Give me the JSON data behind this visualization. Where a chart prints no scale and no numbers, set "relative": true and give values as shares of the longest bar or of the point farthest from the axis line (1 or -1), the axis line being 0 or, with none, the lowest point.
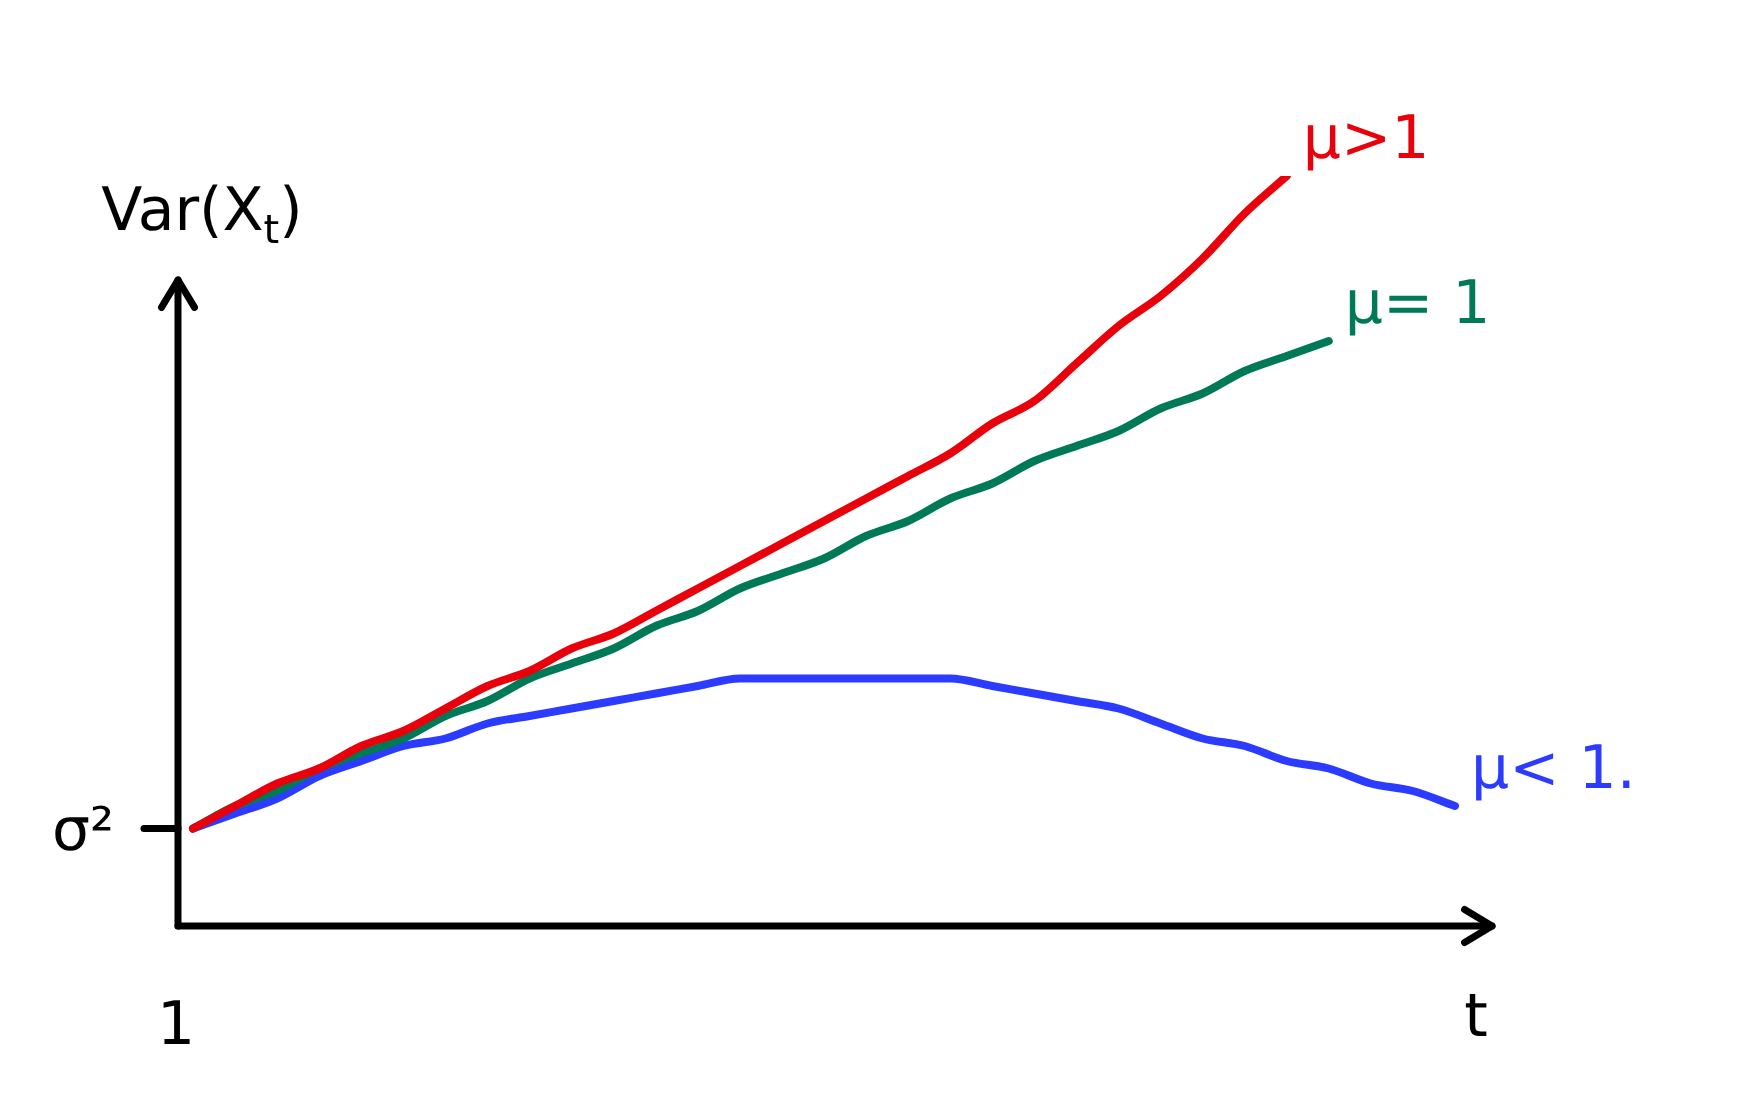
{
  "chart_data": {
    "type": "line",
    "relative": true,
    "xlabel": "t",
    "ylabel": "Var(X$_{t}$)",
    "categories": [
      null,
      null,
      null,
      null,
      null,
      null,
      null,
      null,
      null,
      null,
      null,
      null,
      null,
      null,
      null,
      null,
      null,
      null,
      null,
      null,
      null,
      null,
      null,
      null,
      null,
      null,
      null,
      null,
      null,
      null,
      null
    ],
    "series": [
      {
        "name": "μ>1",
        "color": "#e8000a",
        "values": [
          0.13,
          0.16,
          0.19,
          0.21,
          0.24,
          0.26,
          0.29,
          0.32,
          0.34,
          0.37,
          0.39,
          0.42,
          0.45,
          0.48,
          0.51,
          0.54,
          0.57,
          0.6,
          0.63,
          0.67,
          0.7,
          0.75,
          0.8,
          0.84,
          0.89,
          0.95,
          1,
          null,
          null,
          null,
          null
        ]
      },
      {
        "name": "μ= 1",
        "color": "#007a56",
        "values": [
          0.13,
          0.16,
          0.18,
          0.21,
          0.23,
          0.25,
          0.28,
          0.3,
          0.33,
          0.35,
          0.37,
          0.4,
          0.42,
          0.45,
          0.47,
          0.49,
          0.52,
          0.54,
          0.57,
          0.59,
          0.62,
          0.64,
          0.66,
          0.69,
          0.71,
          0.74,
          0.76,
          0.78,
          null,
          null,
          null
        ]
      },
      {
        "name": "μ< 1.",
        "color": "#2b3bff",
        "values": [
          0.13,
          0.15,
          0.17,
          0.2,
          0.22,
          0.24,
          0.25,
          0.27,
          0.28,
          0.29,
          0.3,
          0.31,
          0.32,
          0.33,
          0.33,
          0.33,
          0.33,
          0.33,
          0.33,
          0.32,
          0.31,
          0.3,
          0.29,
          0.27,
          0.25,
          0.24,
          0.22,
          0.21,
          0.19,
          0.18,
          0.16
        ]
      }
    ],
    "annotations": [
      "σ²",
      "1"
    ]
  }
}
